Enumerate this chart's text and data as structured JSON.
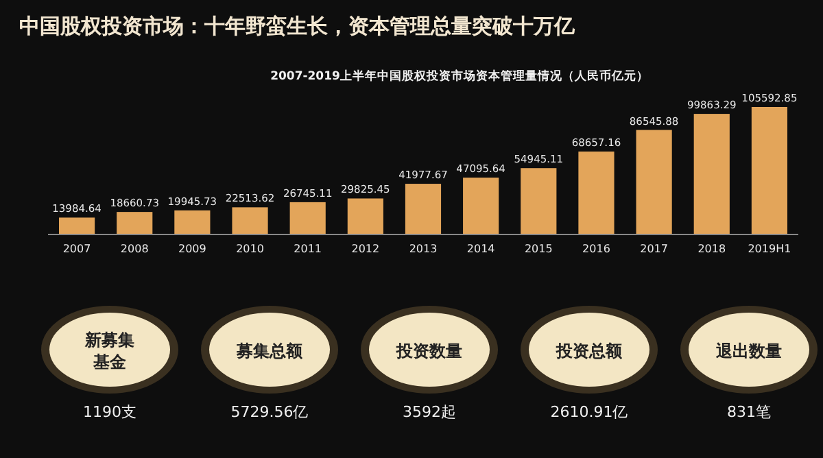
{
  "chart_data": [
    {
      "type": "bar",
      "title": "中国股权投资市场：十年野蛮生长，资本管理总量突破十万亿",
      "subtitle": "2007-2019上半年中国股权投资市场资本管理量情况（人民币亿元）",
      "categories": [
        "2007",
        "2008",
        "2009",
        "2010",
        "2011",
        "2012",
        "2013",
        "2014",
        "2015",
        "2016",
        "2017",
        "2018",
        "2019H1"
      ],
      "values": [
        13984.64,
        18660.73,
        19945.73,
        22513.62,
        26745.11,
        29825.45,
        41977.67,
        47095.64,
        54945.11,
        68657.16,
        86545.88,
        99863.29,
        105592.85
      ],
      "color": "#e3a55a",
      "data_labels": true
    },
    {
      "type": "other",
      "annotations": [
        "新募集基金",
        "1190支",
        "募集总额",
        "5729.56亿",
        "投资数量",
        "3592起",
        "投资总额",
        "2610.91亿",
        "退出数量",
        "831笔"
      ]
    }
  ]
}
